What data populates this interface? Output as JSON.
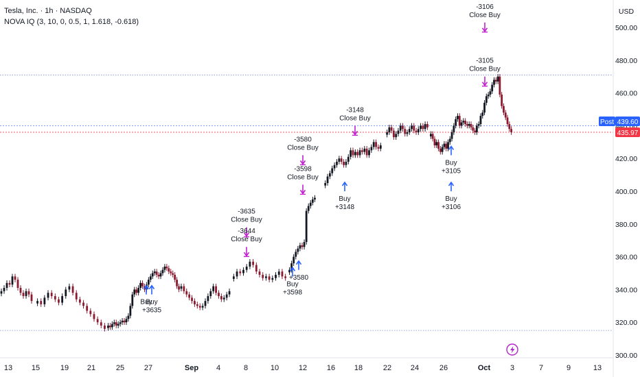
{
  "header": {
    "title": "Tesla, Inc. · 1h · NASDAQ",
    "indicator": "NOVA IQ (3, 10, 0, 0.5, 1, 1.618, -0.618)"
  },
  "currency": "USD",
  "price_tags": {
    "post_label": "Post",
    "post_price": "439.60",
    "last_price": "435.97"
  },
  "colors": {
    "up": "#131722",
    "down": "#8b1a2f",
    "buy_arrow": "#2962ff",
    "sell_arrow": "#c21fd0",
    "post_tag": "#2962ff",
    "last_tag": "#f23645"
  },
  "chart_data": {
    "type": "candlestick",
    "y_axis": {
      "ylim": [
        298,
        512
      ],
      "ticks": [
        "300.00",
        "320.00",
        "340.00",
        "360.00",
        "380.00",
        "400.00",
        "420.00",
        "440.00",
        "460.00",
        "480.00",
        "500.00"
      ]
    },
    "x_axis": {
      "ticks": [
        {
          "label": "13",
          "bold": false
        },
        {
          "label": "15",
          "bold": false
        },
        {
          "label": "19",
          "bold": false
        },
        {
          "label": "21",
          "bold": false
        },
        {
          "label": "25",
          "bold": false
        },
        {
          "label": "27",
          "bold": false
        },
        {
          "label": "Sep",
          "bold": true
        },
        {
          "label": "4",
          "bold": false
        },
        {
          "label": "8",
          "bold": false
        },
        {
          "label": "10",
          "bold": false
        },
        {
          "label": "12",
          "bold": false
        },
        {
          "label": "16",
          "bold": false
        },
        {
          "label": "18",
          "bold": false
        },
        {
          "label": "22",
          "bold": false
        },
        {
          "label": "24",
          "bold": false
        },
        {
          "label": "26",
          "bold": false
        },
        {
          "label": "Oct",
          "bold": true
        },
        {
          "label": "3",
          "bold": false
        },
        {
          "label": "7",
          "bold": false
        },
        {
          "label": "9",
          "bold": false
        },
        {
          "label": "13",
          "bold": false
        }
      ]
    },
    "series": [
      {
        "segment": 1,
        "close": [
          339,
          341,
          344,
          343,
          348,
          346,
          341,
          338,
          336,
          339,
          337,
          333
        ]
      },
      {
        "segment": 2,
        "close": [
          333,
          331,
          335,
          338,
          336,
          334,
          332,
          336,
          340,
          342,
          338,
          334,
          332,
          330,
          327,
          325,
          322,
          320,
          318,
          316
        ]
      },
      {
        "segment": 3,
        "close": [
          318,
          317,
          319,
          320,
          318,
          319,
          320,
          321,
          320,
          322,
          324,
          330,
          337,
          340,
          338,
          341,
          344,
          342,
          340,
          343,
          346,
          348,
          350,
          351,
          349,
          348,
          350,
          352,
          354,
          353,
          351,
          350,
          349,
          346,
          342,
          340
        ]
      },
      {
        "segment": 4,
        "close": [
          342,
          339,
          337,
          335,
          333,
          331,
          330,
          329,
          330,
          333,
          336,
          339,
          342,
          338,
          336,
          334,
          335,
          337,
          339
        ]
      },
      {
        "segment": 5,
        "close": [
          348,
          351,
          350,
          352,
          354,
          357,
          355,
          351,
          349,
          347,
          348,
          346,
          347,
          349,
          351,
          348,
          347
        ]
      },
      {
        "segment": 6,
        "close": [
          352,
          356,
          360,
          363,
          365,
          367,
          366,
          369,
          388,
          391,
          393,
          395,
          396
        ]
      },
      {
        "segment": 7,
        "close": [
          405,
          409,
          411,
          414,
          416,
          418,
          420,
          418,
          416,
          418,
          421,
          425,
          422,
          424,
          422,
          425,
          424,
          426,
          422,
          425,
          427,
          430,
          427,
          426,
          428
        ]
      },
      {
        "segment": 8,
        "close": [
          436,
          439,
          437,
          433,
          435,
          437,
          440,
          438,
          435,
          436,
          438,
          440,
          437,
          436,
          438,
          440,
          438,
          441,
          439
        ]
      },
      {
        "segment": 9,
        "close": [
          435,
          432,
          428,
          430,
          426,
          424,
          427,
          429,
          426,
          430,
          432,
          436,
          440,
          444,
          446,
          440,
          442,
          443,
          441,
          440,
          441,
          439,
          437,
          436,
          440,
          441,
          446,
          448,
          454,
          458,
          459,
          461,
          465,
          468,
          467,
          470,
          459,
          452,
          448,
          445,
          441,
          438,
          436
        ]
      }
    ],
    "signals": [
      {
        "type": "buy",
        "lines": [
          "Buy"
        ],
        "arrow_price": 342
      },
      {
        "type": "buy",
        "lines": [
          "Buy",
          "+3635"
        ],
        "arrow_price": 342
      },
      {
        "type": "sell",
        "lines": [
          "-3635",
          "Close Buy"
        ],
        "arrow_price": 373
      },
      {
        "type": "sell",
        "lines": [
          "-3644",
          "Close Buy"
        ],
        "arrow_price": 361
      },
      {
        "type": "buy",
        "lines": [
          "Buy",
          "+3598"
        ],
        "arrow_price": 353
      },
      {
        "type": "buy",
        "lines": [
          "+3580"
        ],
        "arrow_price": 357
      },
      {
        "type": "sell",
        "lines": [
          "-3580",
          "Close Buy"
        ],
        "arrow_price": 417
      },
      {
        "type": "sell",
        "lines": [
          "-3598",
          "Close Buy"
        ],
        "arrow_price": 399
      },
      {
        "type": "buy",
        "lines": [
          "Buy",
          "+3148"
        ],
        "arrow_price": 405
      },
      {
        "type": "sell",
        "lines": [
          "-3148",
          "Close Buy"
        ],
        "arrow_price": 435
      },
      {
        "type": "buy",
        "lines": [
          "Buy",
          "+3105"
        ],
        "arrow_price": 427
      },
      {
        "type": "buy",
        "lines": [
          "Buy",
          "+3106"
        ],
        "arrow_price": 405
      },
      {
        "type": "sell",
        "lines": [
          "-3106",
          "Close Buy"
        ],
        "arrow_price": 498
      },
      {
        "type": "sell",
        "lines": [
          "-3105",
          "Close Buy"
        ],
        "arrow_price": 465
      }
    ],
    "grid": false,
    "horizontal_levels": [
      471,
      315,
      440,
      436
    ]
  }
}
